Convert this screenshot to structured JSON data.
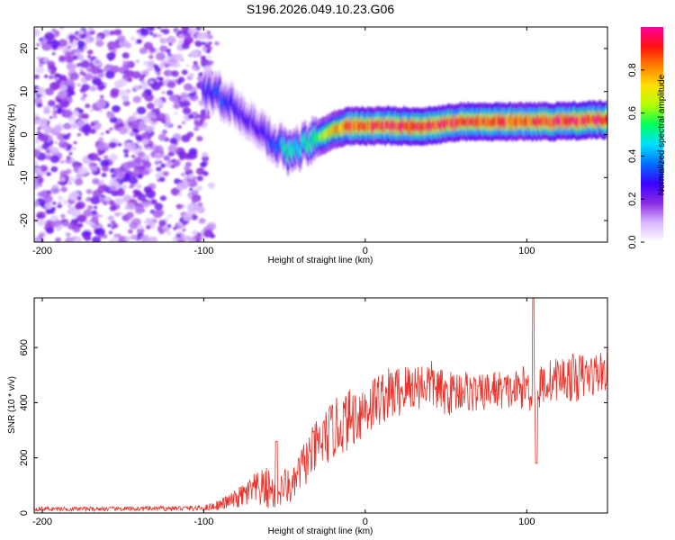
{
  "title": "S196.2026.049.10.23.G06",
  "colors": {
    "trace": "#e8322a",
    "axis": "#000000",
    "colormap": [
      "#ffffff",
      "#d8b8ff",
      "#8a2be2",
      "#3a00ff",
      "#0070ff",
      "#00e0ff",
      "#00ff60",
      "#b0ff00",
      "#ffe000",
      "#ff8000",
      "#ff1010",
      "#ff00a0"
    ]
  },
  "chart_data": [
    {
      "type": "heatmap",
      "name": "spectrogram",
      "xlabel": "Height of straight line (km)",
      "ylabel": "Frequency (Hz)",
      "xlim": [
        -205,
        150
      ],
      "ylim": [
        -25,
        25
      ],
      "xticks": [
        -200,
        -100,
        0,
        100
      ],
      "yticks": [
        -20,
        -10,
        0,
        10,
        20
      ],
      "colorbar": {
        "label": "Normalized spectral amplitude",
        "range": [
          0,
          1
        ],
        "ticks": [
          "0.0",
          "0.2",
          "0.4",
          "0.6",
          "0.8"
        ]
      },
      "ridge": {
        "description_points_x": [
          -100,
          -90,
          -80,
          -70,
          -62,
          -55,
          -48,
          -40,
          -30,
          -20,
          -10,
          0,
          20,
          40,
          60,
          80,
          100,
          120,
          150
        ],
        "frequency_hz": [
          10,
          9,
          6,
          3,
          0,
          -2,
          -4,
          -3,
          -1,
          1,
          2,
          2,
          2,
          2,
          3,
          3,
          3,
          3,
          3.5
        ],
        "amplitude": [
          0.3,
          0.35,
          0.3,
          0.25,
          0.3,
          0.35,
          0.55,
          0.5,
          0.6,
          0.75,
          0.9,
          0.9,
          0.95,
          0.95,
          0.9,
          0.92,
          0.9,
          0.95,
          0.95
        ]
      },
      "noise_region": {
        "x_range": [
          -205,
          -95
        ],
        "freq_range": [
          -25,
          25
        ],
        "amplitude": 0.2
      }
    },
    {
      "type": "line",
      "name": "snr",
      "xlabel": "Height of straight line (km)",
      "ylabel": "SNR (10 * v/v)",
      "xlim": [
        -205,
        150
      ],
      "ylim": [
        0,
        780
      ],
      "xticks": [
        -200,
        -100,
        0,
        100
      ],
      "yticks": [
        0,
        200,
        400,
        600
      ],
      "envelope": {
        "x": [
          -205,
          -150,
          -100,
          -90,
          -80,
          -70,
          -60,
          -55,
          -50,
          -45,
          -40,
          -30,
          -20,
          -10,
          0,
          10,
          20,
          30,
          40,
          50,
          60,
          70,
          80,
          90,
          100,
          105,
          110,
          120,
          130,
          140,
          150
        ],
        "base": [
          15,
          15,
          18,
          30,
          50,
          80,
          90,
          60,
          100,
          90,
          160,
          240,
          300,
          340,
          380,
          420,
          440,
          460,
          470,
          430,
          450,
          430,
          450,
          440,
          460,
          420,
          470,
          490,
          490,
          500,
          520
        ],
        "amp": [
          8,
          8,
          10,
          20,
          35,
          60,
          80,
          50,
          70,
          60,
          80,
          100,
          110,
          110,
          110,
          100,
          100,
          90,
          90,
          80,
          80,
          70,
          70,
          70,
          80,
          80,
          80,
          80,
          90,
          80,
          80
        ]
      },
      "spikes": [
        {
          "x": -55,
          "y": 260
        },
        {
          "x": 104,
          "y": 780
        },
        {
          "x": 106,
          "y": 180
        }
      ]
    }
  ]
}
